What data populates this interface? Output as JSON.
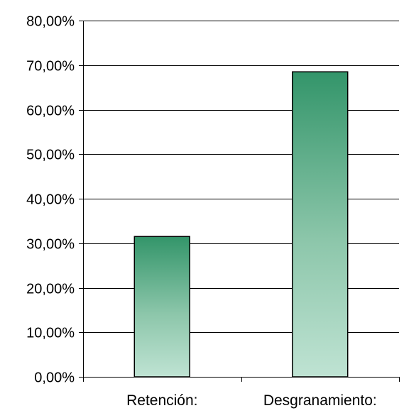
{
  "chart_data": {
    "type": "bar",
    "categories": [
      "Retención:",
      "Desgranamiento:"
    ],
    "values": [
      31.5,
      68.5
    ],
    "ylim": [
      0,
      80
    ],
    "yticks": [
      0,
      10,
      20,
      30,
      40,
      50,
      60,
      70,
      80
    ],
    "ytick_labels": [
      "0,00%",
      "10,00%",
      "20,00%",
      "30,00%",
      "40,00%",
      "50,00%",
      "60,00%",
      "70,00%",
      "80,00%"
    ],
    "grid": true,
    "legend": "none",
    "colors": {
      "bar_top": "#33956a",
      "bar_bottom": "#bfe3d3",
      "bar_edge": "#000000",
      "grid": "#000000"
    }
  }
}
